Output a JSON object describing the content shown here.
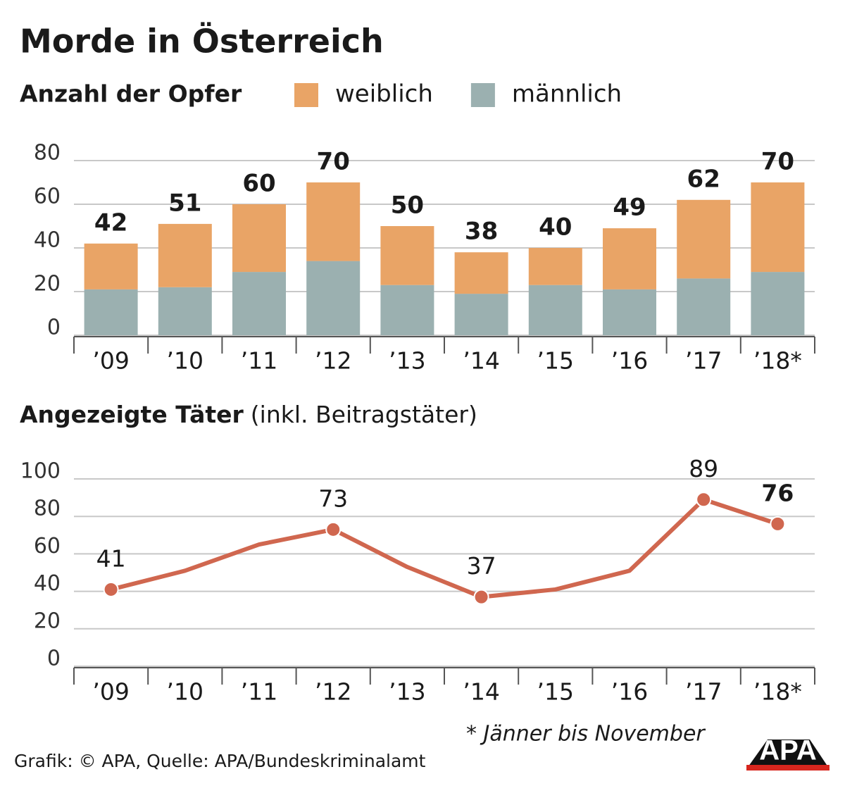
{
  "title": "Morde in Österreich",
  "chart_data": [
    {
      "type": "bar",
      "stacked": true,
      "title": "Anzahl der Opfer",
      "categories": [
        "’09",
        "’10",
        "’11",
        "’12",
        "’13",
        "’14",
        "’15",
        "’16",
        "’17",
        "’18*"
      ],
      "series": [
        {
          "name": "weiblich",
          "color": "#e9a466",
          "values": [
            21,
            29,
            31,
            36,
            27,
            19,
            17,
            28,
            36,
            41
          ]
        },
        {
          "name": "männlich",
          "color": "#9bb0b0",
          "values": [
            21,
            22,
            29,
            34,
            23,
            19,
            23,
            21,
            26,
            29
          ]
        }
      ],
      "totals": [
        42,
        51,
        60,
        70,
        50,
        38,
        40,
        49,
        62,
        70
      ],
      "ylim": [
        0,
        80
      ],
      "yticks": [
        0,
        20,
        40,
        60,
        80
      ],
      "grid": true
    },
    {
      "type": "line",
      "title": "Angezeigte Täter",
      "subtitle": "(inkl. Beitragstäter)",
      "categories": [
        "’09",
        "’10",
        "’11",
        "’12",
        "’13",
        "’14",
        "’15",
        "’16",
        "’17",
        "’18*"
      ],
      "series": [
        {
          "color": "#d0674f",
          "values": [
            41,
            51,
            65,
            73,
            53,
            37,
            41,
            51,
            89,
            76
          ],
          "value_labels": [
            "41",
            null,
            null,
            "73",
            null,
            "37",
            null,
            null,
            "89",
            "76"
          ]
        }
      ],
      "ylim": [
        0,
        100
      ],
      "yticks": [
        0,
        20,
        40,
        60,
        80,
        100
      ],
      "grid": true
    }
  ],
  "footnote": "* Jänner bis November",
  "source": "Grafik: © APA, Quelle: APA/Bundeskriminalamt",
  "logo": "APA"
}
